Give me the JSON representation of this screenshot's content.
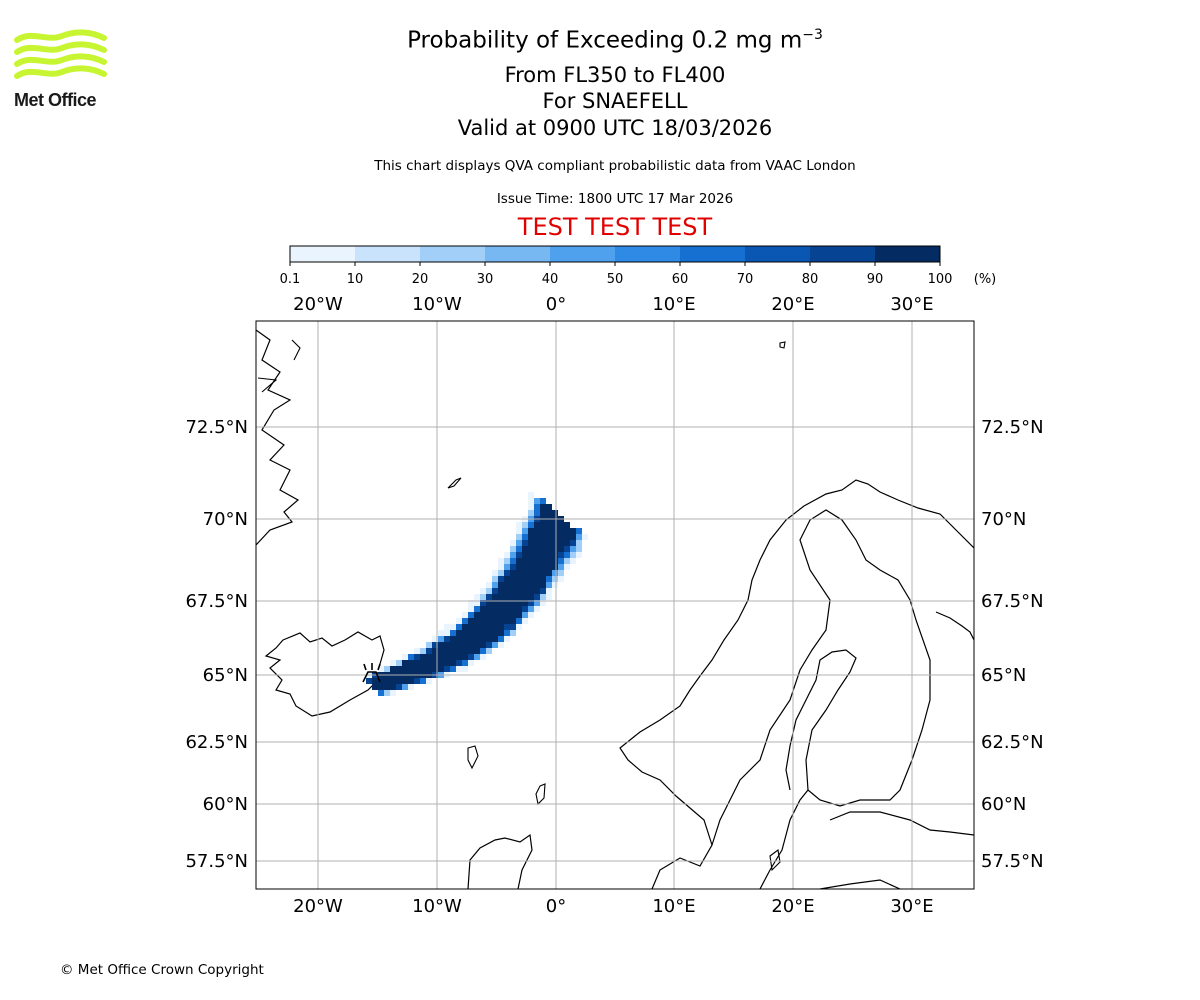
{
  "logo": {
    "icon": "met-office-waves-icon",
    "text": "Met Office",
    "color": "#c8f532"
  },
  "title": {
    "main_prefix": "Probability of Exceeding 0.2 mg m",
    "main_sup": "−3",
    "levels": "From FL350 to FL400",
    "volcano": "For SNAEFELL",
    "valid": "Valid at 0900 UTC 18/03/2026",
    "disclaimer": "This chart displays QVA compliant probabilistic data from VAAC London",
    "issue": "Issue Time: 1800 UTC 17 Mar 2026",
    "test_banner": "TEST TEST TEST"
  },
  "colorbar": {
    "unit": "(%)",
    "ticks": [
      "0.1",
      "10",
      "20",
      "30",
      "40",
      "50",
      "60",
      "70",
      "80",
      "90",
      "100"
    ],
    "colors": [
      "#eaf4fe",
      "#c8e3fb",
      "#a2cff7",
      "#78b8f2",
      "#4fa1ee",
      "#2f8ae6",
      "#1570d2",
      "#0a57b3",
      "#074393",
      "#052c62"
    ]
  },
  "map": {
    "lon_labels": [
      "20°W",
      "10°W",
      "0°",
      "10°E",
      "20°E",
      "30°E"
    ],
    "lat_labels": [
      "72.5°N",
      "70°N",
      "67.5°N",
      "65°N",
      "62.5°N",
      "60°N",
      "57.5°N"
    ],
    "volcano_marker": "volcano-icon"
  },
  "footer": "© Met Office Crown Copyright"
}
